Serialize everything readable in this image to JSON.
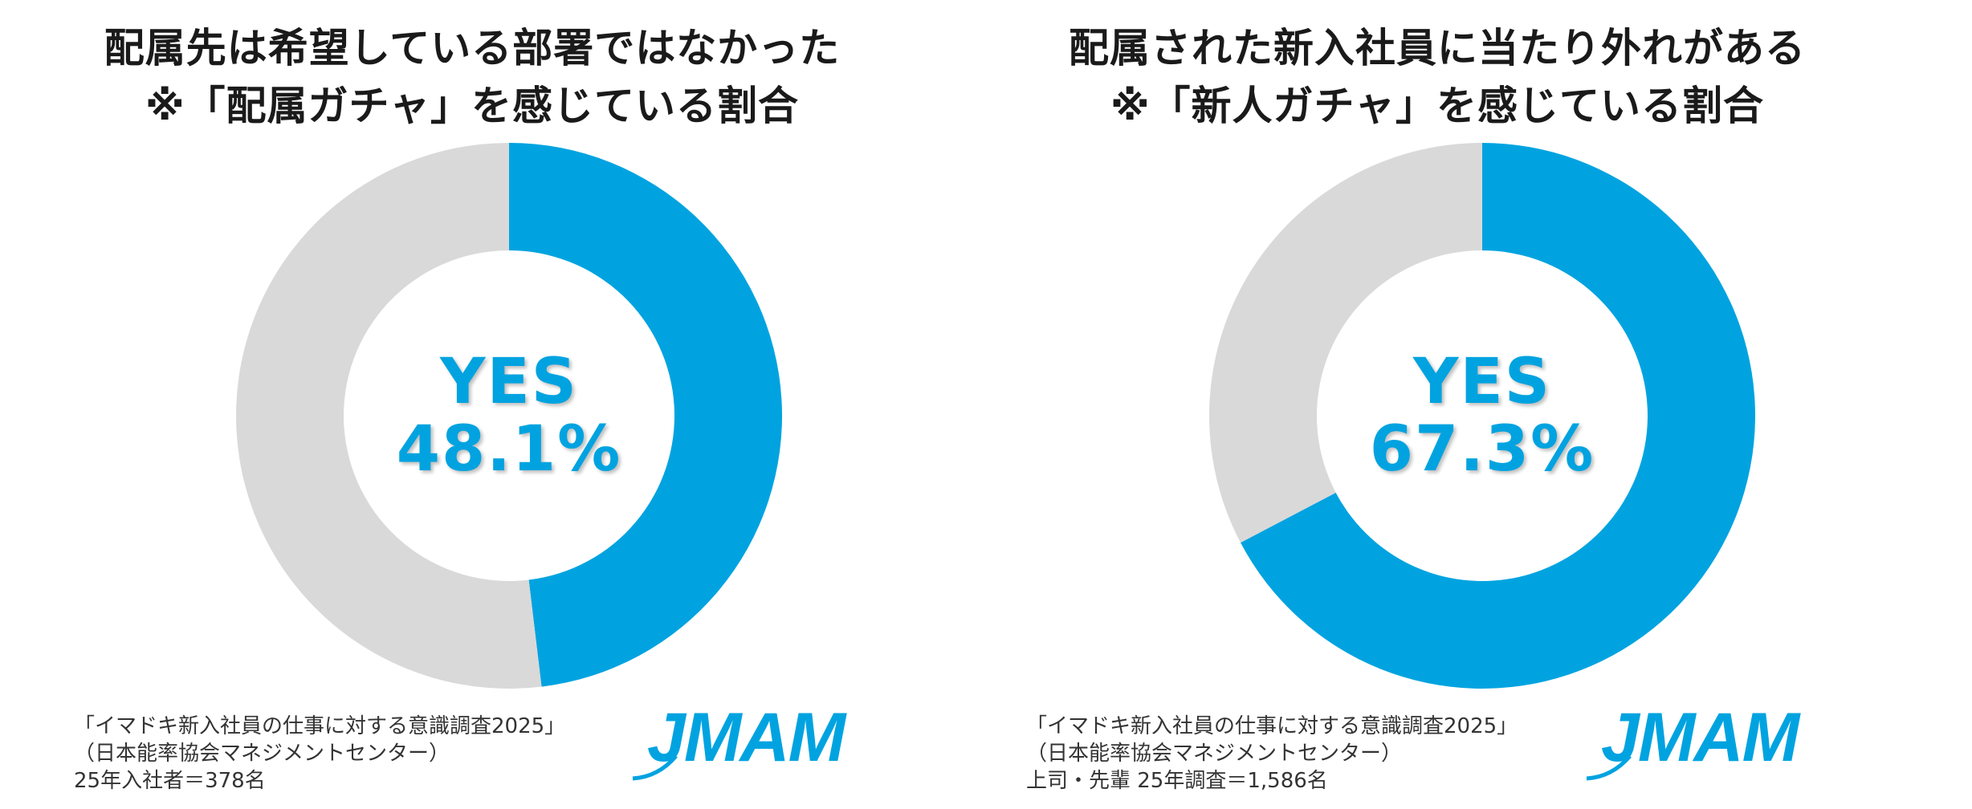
{
  "colors": {
    "yes": "#00a3e0",
    "no": "#d9d9d9",
    "label": "#00a3e0"
  },
  "chart_data": [
    {
      "type": "pie",
      "title": "配属先は希望している部署ではなかった",
      "subtitle": "※「配属ガチャ」を感じている割合",
      "slices": [
        {
          "name": "YES",
          "value": 48.1
        },
        {
          "name": "",
          "value": 51.9
        }
      ],
      "center_label": "YES",
      "center_value": "48.1%",
      "legend": "none",
      "source_lines": [
        "「イマドキ新入社員の仕事に対する意識調査2025」",
        "（日本能率協会マネジメントセンター）",
        "25年入社者＝378名"
      ],
      "logo_text": "JMAM"
    },
    {
      "type": "pie",
      "title": "配属された新入社員に当たり外れがある",
      "subtitle": "※「新人ガチャ」を感じている割合",
      "slices": [
        {
          "name": "YES",
          "value": 67.3
        },
        {
          "name": "",
          "value": 32.7
        }
      ],
      "center_label": "YES",
      "center_value": "67.3%",
      "legend": "none",
      "source_lines": [
        "「イマドキ新入社員の仕事に対する意識調査2025」",
        "（日本能率協会マネジメントセンター）",
        "上司・先輩 25年調査＝1,586名"
      ],
      "logo_text": "JMAM"
    }
  ]
}
